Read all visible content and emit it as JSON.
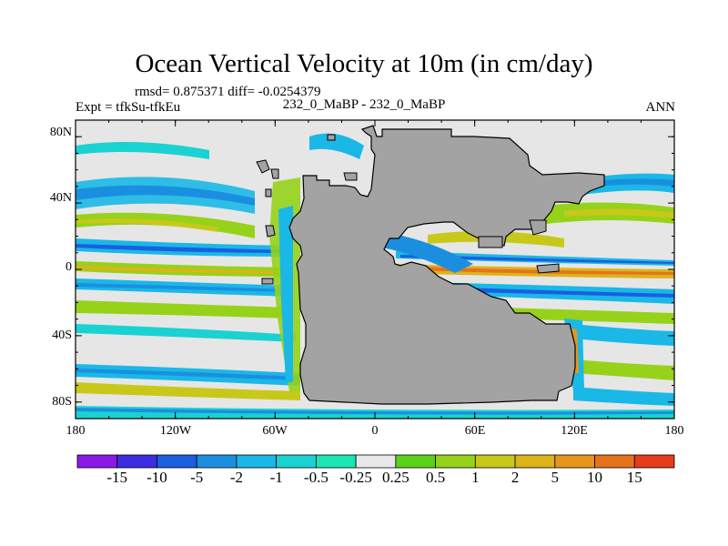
{
  "title": "Ocean Vertical Velocity at 10m (in cm/day)",
  "stats": "rmsd= 0.875371  diff= -0.0254379",
  "experiment": "Expt = tfkSu-tfkEu",
  "period": "232_0_MaBP - 232_0_MaBP",
  "season": "ANN",
  "map": {
    "lon_range": [
      -180,
      180
    ],
    "lat_range": [
      -90,
      90
    ],
    "land_color": "#a3a3a3",
    "ocean_background": "#e6e6e6",
    "y_ticks": [
      "80N",
      "40N",
      "0",
      "40S",
      "80S"
    ],
    "x_ticks": [
      "180",
      "120W",
      "60W",
      "0",
      "60E",
      "120E",
      "180"
    ]
  },
  "colorbar": {
    "labels": [
      "-15",
      "-10",
      "-5",
      "-2",
      "-1",
      "-0.5",
      "-0.25",
      "0.25",
      "0.5",
      "1",
      "2",
      "5",
      "10",
      "15"
    ],
    "colors": [
      "#8c1ae6",
      "#3c2de0",
      "#1a5fe0",
      "#1a8fe0",
      "#1ab8e6",
      "#1ad2d2",
      "#1ae6b4",
      "#e8e8e8",
      "#5ad21a",
      "#96d21a",
      "#c8c81a",
      "#dcb41a",
      "#e6961a",
      "#e6731a",
      "#e63c1a"
    ]
  }
}
